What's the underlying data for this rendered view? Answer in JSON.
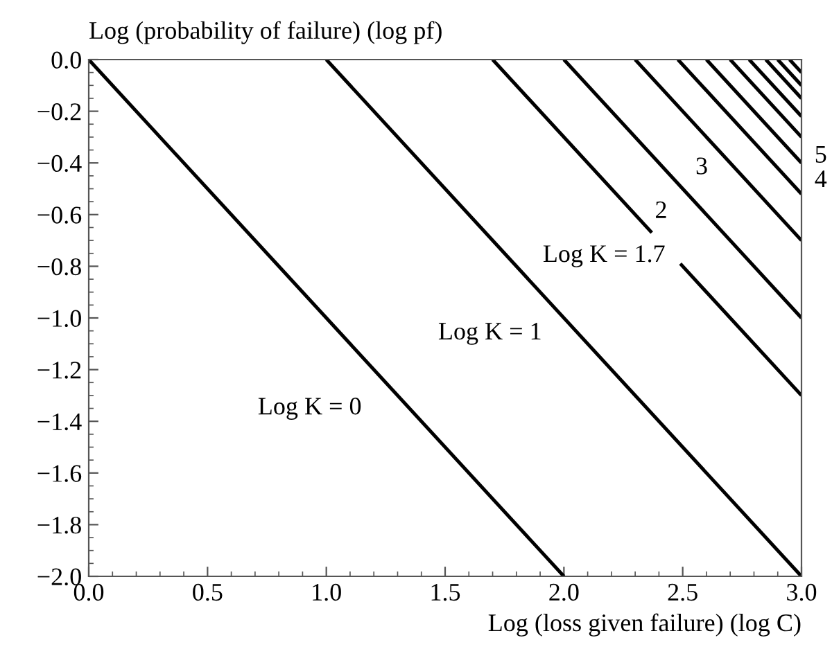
{
  "chart_data": {
    "type": "line",
    "ylabel": "Log (probability of failure) (log pf)",
    "xlabel": "Log (loss given failure) (log C)",
    "xlim": [
      0,
      3
    ],
    "ylim": [
      -2,
      0
    ],
    "xticks": [
      {
        "value": 0,
        "label": "0.0"
      },
      0.5,
      {
        "value": 1,
        "label": "1.0"
      },
      1.5,
      {
        "value": 2,
        "label": "2.0"
      },
      2.5,
      {
        "value": 3,
        "label": "3.0"
      }
    ],
    "yticks": [
      {
        "value": 0,
        "label": "0.0"
      },
      {
        "value": -0.2,
        "label": "−0.2"
      },
      {
        "value": -0.4,
        "label": "−0.4"
      },
      {
        "value": -0.6,
        "label": "−0.6"
      },
      {
        "value": -0.8,
        "label": "−0.8"
      },
      {
        "value": -1,
        "label": "−1.0"
      },
      {
        "value": -1.2,
        "label": "−1.2"
      },
      {
        "value": -1.4,
        "label": "−1.4"
      },
      {
        "value": -1.6,
        "label": "−1.6"
      },
      {
        "value": -1.8,
        "label": "−1.8"
      },
      {
        "value": -2,
        "label": "−2.0"
      }
    ],
    "grid": false,
    "legend": false,
    "marker": "none",
    "line_style": "solid",
    "series": [
      {
        "color": "#000000",
        "x": [
          0,
          2
        ],
        "values": [
          0,
          -2
        ]
      },
      {
        "color": "#000000",
        "x": [
          1,
          3
        ],
        "values": [
          0,
          -2
        ]
      },
      {
        "color": "#000000",
        "x": [
          1.7,
          2.37,
          2.43,
          2.49,
          3
        ],
        "values": [
          0,
          -0.67,
          null,
          -0.79,
          -1.3
        ]
      },
      {
        "color": "#000000",
        "x": [
          2,
          3
        ],
        "values": [
          0,
          -1
        ]
      },
      {
        "color": "#000000",
        "x": [
          2.3,
          3
        ],
        "values": [
          0,
          -0.7
        ]
      },
      {
        "color": "#000000",
        "x": [
          2.48,
          3
        ],
        "values": [
          0,
          -0.52
        ]
      },
      {
        "color": "#000000",
        "x": [
          2.6,
          3
        ],
        "values": [
          0,
          -0.4
        ]
      },
      {
        "color": "#000000",
        "x": [
          2.7,
          3
        ],
        "values": [
          0,
          -0.3
        ]
      },
      {
        "color": "#000000",
        "x": [
          2.78,
          3
        ],
        "values": [
          0,
          -0.22
        ]
      },
      {
        "color": "#000000",
        "x": [
          2.85,
          3
        ],
        "values": [
          0,
          -0.15
        ]
      },
      {
        "color": "#000000",
        "x": [
          2.9,
          3
        ],
        "values": [
          0,
          -0.1
        ]
      },
      {
        "color": "#000000",
        "x": [
          2.95,
          3
        ],
        "values": [
          0,
          -0.05
        ]
      }
    ],
    "annotations": [
      "Log K = 0",
      "Log K = 1",
      "Log K = 1.7",
      "2",
      "3",
      "5",
      "4"
    ]
  }
}
